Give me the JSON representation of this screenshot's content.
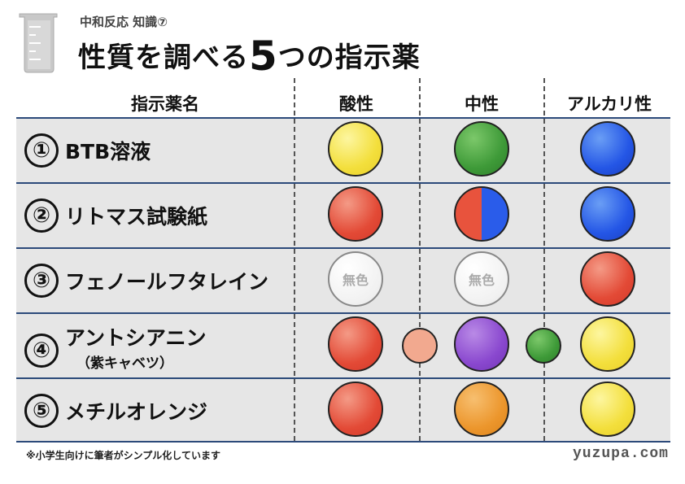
{
  "header": {
    "subtitle": "中和反応 知識⑦",
    "title_before": "性質を調べる",
    "title_num": "5",
    "title_after": "つの指示薬"
  },
  "columns": {
    "name": "指示薬名",
    "acid": "酸性",
    "neutral": "中性",
    "alkaline": "アルカリ性"
  },
  "rows": [
    {
      "num": "①",
      "name": "BTB溶液",
      "acid": "yellow",
      "neutral": "green",
      "alkaline": "blue"
    },
    {
      "num": "②",
      "name": "リトマス試験紙",
      "acid": "red",
      "neutral": "red/blue",
      "alkaline": "blue"
    },
    {
      "num": "③",
      "name": "フェノールフタレイン",
      "acid": "無色",
      "neutral": "無色",
      "alkaline": "red"
    },
    {
      "num": "④",
      "name": "アントシアニン",
      "sub": "（紫キャベツ）",
      "acid": "red",
      "acid_mid": "pink",
      "neutral": "purple",
      "neutral_mid": "green",
      "alkaline": "yellow"
    },
    {
      "num": "⑤",
      "name": "メチルオレンジ",
      "acid": "red",
      "neutral": "orange",
      "alkaline": "yellow"
    }
  ],
  "colors": {
    "yellow": "#f3df3c",
    "green": "#3e9a38",
    "blue": "#2456e6",
    "red": "#e34a36",
    "purple": "#8a48cf",
    "orange": "#ec962c",
    "pink": "#f2a98f",
    "rule": "#2c4a7a"
  },
  "footer": {
    "note": "※小学生向けに筆者がシンプル化しています",
    "credit": "yuzupa.com"
  }
}
